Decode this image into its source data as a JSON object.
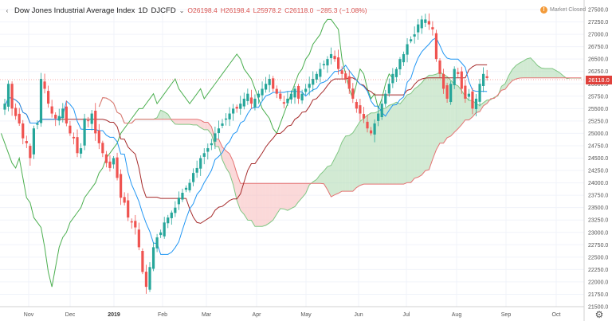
{
  "header": {
    "collapse_glyph": "‹",
    "symbol": "Dow Jones Industrial Average Index",
    "interval": "1D",
    "ticker": "DJCFD",
    "caret": "⌄",
    "open": "O26198.4",
    "high": "H26198.4",
    "low": "L25978.2",
    "close": "C26118.0",
    "change": "−285.3 (−1.08%)"
  },
  "market_status": {
    "glyph": "!",
    "label": "Market Closed"
  },
  "last_price_tag": "26118.0",
  "settings_icon_glyph": "⚙",
  "colors": {
    "up": "#26a69a",
    "down": "#ef5350",
    "tenkan": "#2196f3",
    "kijun": "#a52a2a",
    "chikou": "#4caf50",
    "cloud_bull": "#a5d6a7",
    "cloud_bear": "#f8b4b4"
  },
  "chart_data": {
    "type": "candlestick",
    "indicator": "Ichimoku Cloud",
    "ylim": [
      21500,
      27500
    ],
    "yticks": [
      21500.0,
      21750.0,
      22000.0,
      22250.0,
      22500.0,
      22750.0,
      23000.0,
      23250.0,
      23500.0,
      23750.0,
      24000.0,
      24250.0,
      24500.0,
      24750.0,
      25000.0,
      25250.0,
      25500.0,
      25750.0,
      26000.0,
      26250.0,
      26500.0,
      26750.0,
      27000.0,
      27250.0,
      27500.0
    ],
    "xticks": [
      {
        "label": "Nov",
        "bold": false
      },
      {
        "label": "Dec",
        "bold": false
      },
      {
        "label": "2019",
        "bold": true
      },
      {
        "label": "Feb",
        "bold": false
      },
      {
        "label": "Mar",
        "bold": false
      },
      {
        "label": "Apr",
        "bold": false
      },
      {
        "label": "May",
        "bold": false
      },
      {
        "label": "Jun",
        "bold": false
      },
      {
        "label": "Jul",
        "bold": false
      },
      {
        "label": "Aug",
        "bold": false
      },
      {
        "label": "Sep",
        "bold": false
      },
      {
        "label": "Oct",
        "bold": false
      }
    ],
    "close": [
      25600,
      26000,
      25500,
      25350,
      25200,
      24900,
      24800,
      24500,
      25100,
      25200,
      26100,
      25900,
      25600,
      25400,
      25300,
      25350,
      25500,
      25200,
      25000,
      24900,
      24600,
      24700,
      25300,
      25250,
      25400,
      25000,
      24800,
      24600,
      24400,
      24300,
      24500,
      24100,
      23700,
      23600,
      23300,
      23200,
      23100,
      22700,
      22200,
      21900,
      22300,
      22700,
      22900,
      23000,
      23200,
      23300,
      23400,
      23500,
      23700,
      23800,
      23900,
      24000,
      24200,
      24300,
      24500,
      24600,
      24700,
      24800,
      25000,
      25100,
      25200,
      25300,
      25400,
      25500,
      25500,
      25600,
      25700,
      25800,
      25600,
      25700,
      25800,
      25900,
      26000,
      26100,
      25900,
      25800,
      25700,
      25600,
      25700,
      25800,
      25900,
      25700,
      25800,
      25900,
      26000,
      26100,
      26200,
      26300,
      26400,
      26500,
      26600,
      26500,
      26300,
      26200,
      26100,
      25900,
      25700,
      25500,
      25400,
      25300,
      25100,
      25000,
      25200,
      25400,
      25600,
      25800,
      26000,
      26200,
      26300,
      26500,
      26600,
      26800,
      26900,
      27000,
      27200,
      27300,
      27300,
      27200,
      27100,
      26500,
      26200,
      25900,
      25700,
      26000,
      26300,
      26200,
      25900,
      25700,
      25800,
      25500,
      25700,
      26000,
      26200,
      26118
    ]
  }
}
